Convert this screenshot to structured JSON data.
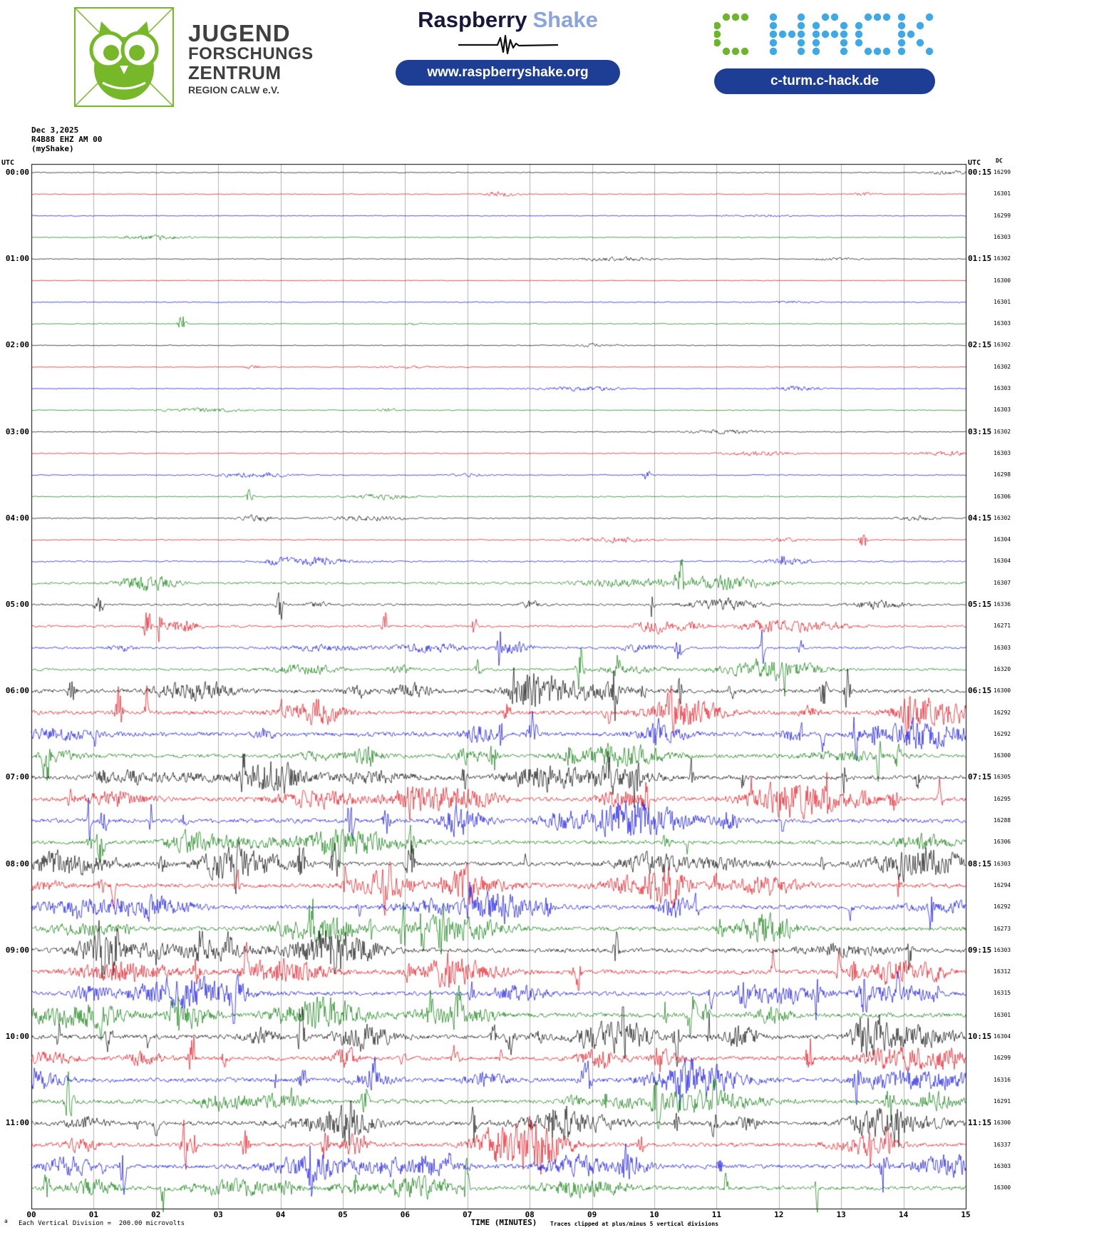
{
  "header": {
    "pill_color": "#1e3e96",
    "logo": {
      "green": "#76b82a",
      "line1": "JUGEND",
      "line2": "FORSCHUNGS",
      "line3": "ZENTRUM",
      "line4": "REGION CALW e.V."
    },
    "raspberry": {
      "brand_primary": "Raspberry",
      "brand_secondary": "Shake",
      "secondary_color": "#8ca4dc",
      "url": "www.raspberryshake.org"
    },
    "chack": {
      "letters": "C HACK",
      "c_color": "#6cb52d",
      "hack_color": "#3fa9e8",
      "url": "c-turm.c-hack.de"
    }
  },
  "chart_data": {
    "type": "line",
    "subtype": "helicorder-seismogram",
    "title_lines": [
      "Dec 3,2025",
      "R4B88 EHZ AM 00",
      "(myShake)"
    ],
    "left_axis_label": "UTC",
    "right_axis_label": "UTC",
    "dc_label": "DC",
    "xlabel": "TIME (MINUTES)",
    "x_ticks": [
      "00",
      "01",
      "02",
      "03",
      "04",
      "05",
      "06",
      "07",
      "08",
      "09",
      "10",
      "11",
      "12",
      "13",
      "14",
      "15"
    ],
    "footer_left": "Each Vertical Division =  200.00 microvolts",
    "footer_note": "Traces clipped at plus/minus 5 vertical divisions",
    "corner_mark": "a",
    "minutes_per_line": 15,
    "trace_colors": {
      "black": "#000000",
      "red": "#e8000d",
      "blue": "#0000ee",
      "green": "#007700"
    },
    "rows": [
      {
        "left": "00:00",
        "right": "00:15",
        "dc": "16299",
        "color": "black",
        "amp": 0.5,
        "bursts": 1,
        "spikes": 0
      },
      {
        "left": "",
        "right": "",
        "dc": "16301",
        "color": "red",
        "amp": 0.5,
        "bursts": 2,
        "spikes": 0
      },
      {
        "left": "",
        "right": "",
        "dc": "16299",
        "color": "blue",
        "amp": 0.5,
        "bursts": 1,
        "spikes": 0
      },
      {
        "left": "",
        "right": "",
        "dc": "16303",
        "color": "green",
        "amp": 0.5,
        "bursts": 1,
        "spikes": 0
      },
      {
        "left": "01:00",
        "right": "01:15",
        "dc": "16302",
        "color": "black",
        "amp": 0.5,
        "bursts": 2,
        "spikes": 0
      },
      {
        "left": "",
        "right": "",
        "dc": "16300",
        "color": "red",
        "amp": 0.4,
        "bursts": 0,
        "spikes": 0
      },
      {
        "left": "",
        "right": "",
        "dc": "16301",
        "color": "blue",
        "amp": 0.5,
        "bursts": 1,
        "spikes": 0
      },
      {
        "left": "",
        "right": "",
        "dc": "16303",
        "color": "green",
        "amp": 0.5,
        "bursts": 1,
        "spikes": 1
      },
      {
        "left": "02:00",
        "right": "02:15",
        "dc": "16302",
        "color": "black",
        "amp": 0.5,
        "bursts": 1,
        "spikes": 0
      },
      {
        "left": "",
        "right": "",
        "dc": "16302",
        "color": "red",
        "amp": 0.5,
        "bursts": 2,
        "spikes": 0
      },
      {
        "left": "",
        "right": "",
        "dc": "16303",
        "color": "blue",
        "amp": 0.5,
        "bursts": 2,
        "spikes": 0
      },
      {
        "left": "",
        "right": "",
        "dc": "16303",
        "color": "green",
        "amp": 0.5,
        "bursts": 2,
        "spikes": 0
      },
      {
        "left": "03:00",
        "right": "03:15",
        "dc": "16302",
        "color": "black",
        "amp": 0.5,
        "bursts": 1,
        "spikes": 0
      },
      {
        "left": "",
        "right": "",
        "dc": "16303",
        "color": "red",
        "amp": 0.5,
        "bursts": 2,
        "spikes": 0
      },
      {
        "left": "",
        "right": "",
        "dc": "16298",
        "color": "blue",
        "amp": 0.6,
        "bursts": 2,
        "spikes": 1
      },
      {
        "left": "",
        "right": "",
        "dc": "16306",
        "color": "green",
        "amp": 0.6,
        "bursts": 1,
        "spikes": 1
      },
      {
        "left": "04:00",
        "right": "04:15",
        "dc": "16302",
        "color": "black",
        "amp": 0.7,
        "bursts": 3,
        "spikes": 0
      },
      {
        "left": "",
        "right": "",
        "dc": "16304",
        "color": "red",
        "amp": 0.6,
        "bursts": 2,
        "spikes": 1
      },
      {
        "left": "",
        "right": "",
        "dc": "16304",
        "color": "blue",
        "amp": 0.9,
        "bursts": 4,
        "spikes": 1
      },
      {
        "left": "",
        "right": "",
        "dc": "16307",
        "color": "green",
        "amp": 1.4,
        "bursts": 5,
        "spikes": 1
      },
      {
        "left": "05:00",
        "right": "05:15",
        "dc": "16336",
        "color": "black",
        "amp": 1.2,
        "bursts": 4,
        "spikes": 3
      },
      {
        "left": "",
        "right": "",
        "dc": "16271",
        "color": "red",
        "amp": 1.3,
        "bursts": 5,
        "spikes": 4
      },
      {
        "left": "",
        "right": "",
        "dc": "16303",
        "color": "blue",
        "amp": 1.3,
        "bursts": 5,
        "spikes": 4
      },
      {
        "left": "",
        "right": "",
        "dc": "16320",
        "color": "green",
        "amp": 1.4,
        "bursts": 5,
        "spikes": 4
      },
      {
        "left": "06:00",
        "right": "06:15",
        "dc": "16300",
        "color": "black",
        "amp": 2.3,
        "bursts": 7,
        "spikes": 8
      },
      {
        "left": "",
        "right": "",
        "dc": "16292",
        "color": "red",
        "amp": 2.3,
        "bursts": 7,
        "spikes": 8
      },
      {
        "left": "",
        "right": "",
        "dc": "16292",
        "color": "blue",
        "amp": 2.5,
        "bursts": 7,
        "spikes": 8
      },
      {
        "left": "",
        "right": "",
        "dc": "16300",
        "color": "green",
        "amp": 2.2,
        "bursts": 7,
        "spikes": 7
      },
      {
        "left": "07:00",
        "right": "07:15",
        "dc": "16305",
        "color": "black",
        "amp": 2.4,
        "bursts": 8,
        "spikes": 8
      },
      {
        "left": "",
        "right": "",
        "dc": "16295",
        "color": "red",
        "amp": 2.4,
        "bursts": 8,
        "spikes": 8
      },
      {
        "left": "",
        "right": "",
        "dc": "16288",
        "color": "blue",
        "amp": 2.4,
        "bursts": 7,
        "spikes": 7
      },
      {
        "left": "",
        "right": "",
        "dc": "16306",
        "color": "green",
        "amp": 2.2,
        "bursts": 6,
        "spikes": 6
      },
      {
        "left": "08:00",
        "right": "08:15",
        "dc": "16303",
        "color": "black",
        "amp": 2.4,
        "bursts": 8,
        "spikes": 8
      },
      {
        "left": "",
        "right": "",
        "dc": "16294",
        "color": "red",
        "amp": 2.4,
        "bursts": 8,
        "spikes": 8
      },
      {
        "left": "",
        "right": "",
        "dc": "16292",
        "color": "blue",
        "amp": 2.4,
        "bursts": 7,
        "spikes": 7
      },
      {
        "left": "",
        "right": "",
        "dc": "16273",
        "color": "green",
        "amp": 2.4,
        "bursts": 7,
        "spikes": 7
      },
      {
        "left": "09:00",
        "right": "09:15",
        "dc": "16303",
        "color": "black",
        "amp": 2.4,
        "bursts": 8,
        "spikes": 8
      },
      {
        "left": "",
        "right": "",
        "dc": "16312",
        "color": "red",
        "amp": 2.4,
        "bursts": 8,
        "spikes": 8
      },
      {
        "left": "",
        "right": "",
        "dc": "16315",
        "color": "blue",
        "amp": 2.4,
        "bursts": 8,
        "spikes": 8
      },
      {
        "left": "",
        "right": "",
        "dc": "16301",
        "color": "green",
        "amp": 2.6,
        "bursts": 8,
        "spikes": 8
      },
      {
        "left": "10:00",
        "right": "10:15",
        "dc": "16304",
        "color": "black",
        "amp": 2.6,
        "bursts": 9,
        "spikes": 9
      },
      {
        "left": "",
        "right": "",
        "dc": "16299",
        "color": "red",
        "amp": 2.3,
        "bursts": 7,
        "spikes": 7
      },
      {
        "left": "",
        "right": "",
        "dc": "16316",
        "color": "blue",
        "amp": 2.4,
        "bursts": 8,
        "spikes": 8
      },
      {
        "left": "",
        "right": "",
        "dc": "16291",
        "color": "green",
        "amp": 2.3,
        "bursts": 7,
        "spikes": 7
      },
      {
        "left": "11:00",
        "right": "11:15",
        "dc": "16300",
        "color": "black",
        "amp": 2.4,
        "bursts": 8,
        "spikes": 8
      },
      {
        "left": "",
        "right": "",
        "dc": "16337",
        "color": "red",
        "amp": 2.3,
        "bursts": 7,
        "spikes": 7
      },
      {
        "left": "",
        "right": "",
        "dc": "16303",
        "color": "blue",
        "amp": 2.4,
        "bursts": 8,
        "spikes": 8
      },
      {
        "left": "",
        "right": "",
        "dc": "16300",
        "color": "green",
        "amp": 2.2,
        "bursts": 6,
        "spikes": 6
      }
    ]
  }
}
